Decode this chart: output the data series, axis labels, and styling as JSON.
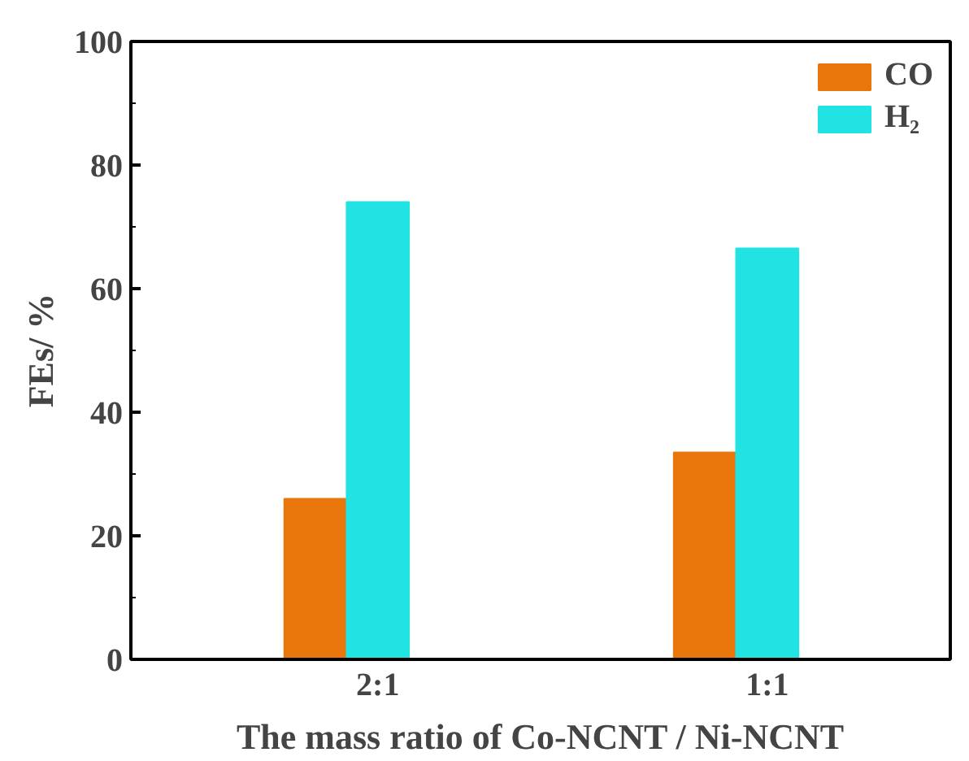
{
  "chart_data": {
    "type": "bar",
    "xlabel": "The mass ratio of Co-NCNT / Ni-NCNT",
    "ylabel": "FEs/ %",
    "categories": [
      "2:1",
      "1:1"
    ],
    "series": [
      {
        "name": "CO",
        "color": "#e8760a",
        "values": [
          26,
          33.5
        ]
      },
      {
        "name": "H₂",
        "color": "#22e3e3",
        "values": [
          74,
          66.5
        ]
      }
    ],
    "ylim": [
      0,
      100
    ],
    "yticks": [
      0,
      20,
      40,
      60,
      80,
      100
    ],
    "grid": false,
    "legend": "top right"
  }
}
